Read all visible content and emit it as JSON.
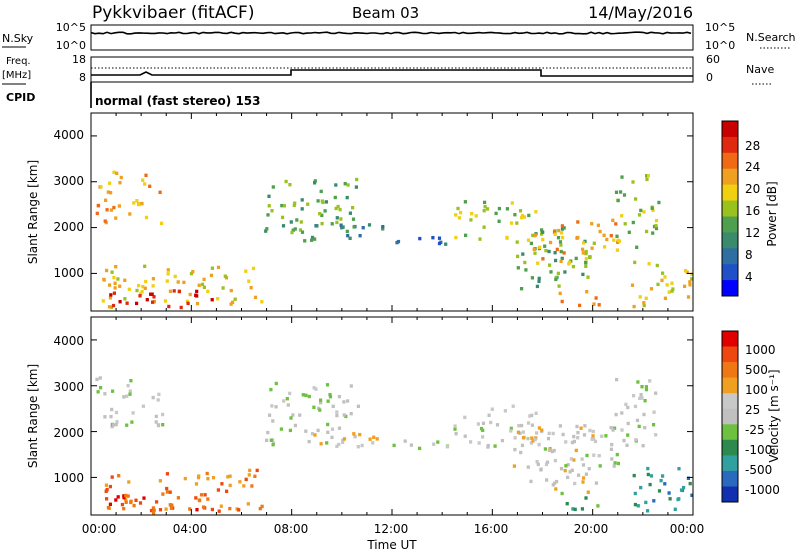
{
  "header": {
    "title": "Pykkvibaer (fitACF)",
    "beam": "Beam 03",
    "date": "14/May/2016"
  },
  "top_panels": {
    "nsky_label": "N.Sky",
    "nsky_ticks": [
      "10^5",
      "10^0"
    ],
    "nsearch_label": "N.Search",
    "nsearch_ticks": [
      "10^5",
      "10^0"
    ],
    "freq_label": "Freq.",
    "freq_unit": "[MHz]",
    "freq_ticks": [
      "18",
      "8"
    ],
    "nave_label": "Nave",
    "nave_ticks": [
      "60",
      "0"
    ],
    "cpid_label": "CPID",
    "cpid_text": "normal (fast stereo) 153"
  },
  "chart_data": [
    {
      "type": "heatmap",
      "name": "power",
      "ylabel": "Slant Range [km]",
      "yticks": [
        "4000",
        "3000",
        "2000",
        "1000"
      ],
      "ylim": [
        180,
        4500
      ],
      "colorbar_label": "Power [dB]",
      "colorbar_ticks": [
        "28",
        "24",
        "20",
        "16",
        "12",
        "8",
        "4"
      ],
      "colors": [
        "#0000ff",
        "#2050c8",
        "#2e6ea0",
        "#3a8a6e",
        "#4ea04e",
        "#9ac21e",
        "#f0d010",
        "#f0a020",
        "#ee6a14",
        "#e02a10",
        "#c80000"
      ],
      "regions": [
        {
          "t": [
            0.1,
            2.8
          ],
          "r": [
            2100,
            3250
          ],
          "level": 7
        },
        {
          "t": [
            0.3,
            6.8
          ],
          "r": [
            300,
            1200
          ],
          "level": 6
        },
        {
          "t": [
            0.6,
            4.8
          ],
          "r": [
            250,
            700
          ],
          "level": 10
        },
        {
          "t": [
            6.9,
            10.6
          ],
          "r": [
            1700,
            3100
          ],
          "level": 4
        },
        {
          "t": [
            8.7,
            11.6
          ],
          "r": [
            1650,
            2100
          ],
          "level": 3
        },
        {
          "t": [
            11.6,
            14.4
          ],
          "r": [
            1600,
            1850
          ],
          "level": 2
        },
        {
          "t": [
            14.4,
            17.9
          ],
          "r": [
            1700,
            2600
          ],
          "level": 5
        },
        {
          "t": [
            16.8,
            20.1
          ],
          "r": [
            700,
            2200
          ],
          "level": 4
        },
        {
          "t": [
            17.6,
            21.0
          ],
          "r": [
            1200,
            2200
          ],
          "level": 7
        },
        {
          "t": [
            18.6,
            20.2
          ],
          "r": [
            300,
            700
          ],
          "level": 8
        },
        {
          "t": [
            20.8,
            22.6
          ],
          "r": [
            1600,
            3200
          ],
          "level": 5
        },
        {
          "t": [
            21.5,
            24.0
          ],
          "r": [
            300,
            1300
          ],
          "level": 6
        }
      ]
    },
    {
      "type": "heatmap",
      "name": "velocity",
      "xlabel": "Time UT",
      "xticks": [
        "00:00",
        "04:00",
        "08:00",
        "12:00",
        "16:00",
        "20:00",
        "00:00"
      ],
      "xlim": [
        0,
        24
      ],
      "ylabel": "Slant Range [km]",
      "yticks": [
        "4000",
        "3000",
        "2000",
        "1000"
      ],
      "ylim": [
        180,
        4500
      ],
      "colorbar_label": "Velocity [m s⁻¹]",
      "colorbar_ticks": [
        "1000",
        "500",
        "100",
        "25",
        "-25",
        "-100",
        "-500",
        "-1000"
      ],
      "colors": [
        "#1030b0",
        "#2a6abe",
        "#30a0a0",
        "#2c8a4e",
        "#6ec040",
        "#c0c0c0",
        "#c8c8c8",
        "#f0a020",
        "#f07814",
        "#ee4810",
        "#e00000"
      ],
      "regions": [
        {
          "t": [
            0.1,
            2.8
          ],
          "r": [
            2100,
            3250
          ],
          "level": 5
        },
        {
          "t": [
            0.3,
            6.8
          ],
          "r": [
            300,
            1200
          ],
          "level": 8
        },
        {
          "t": [
            0.6,
            4.8
          ],
          "r": [
            250,
            700
          ],
          "level": 9
        },
        {
          "t": [
            6.9,
            10.6
          ],
          "r": [
            1700,
            3100
          ],
          "level": 5
        },
        {
          "t": [
            8.7,
            11.6
          ],
          "r": [
            1650,
            2100
          ],
          "level": 6
        },
        {
          "t": [
            11.6,
            14.4
          ],
          "r": [
            1600,
            1850
          ],
          "level": 5
        },
        {
          "t": [
            14.4,
            17.9
          ],
          "r": [
            1700,
            2600
          ],
          "level": 5
        },
        {
          "t": [
            16.8,
            20.1
          ],
          "r": [
            700,
            2200
          ],
          "level": 6
        },
        {
          "t": [
            17.6,
            21.0
          ],
          "r": [
            1200,
            2200
          ],
          "level": 5
        },
        {
          "t": [
            18.6,
            20.2
          ],
          "r": [
            300,
            700
          ],
          "level": 3
        },
        {
          "t": [
            20.8,
            22.6
          ],
          "r": [
            1600,
            3200
          ],
          "level": 5
        },
        {
          "t": [
            21.5,
            24.0
          ],
          "r": [
            300,
            1300
          ],
          "level": 2
        }
      ]
    }
  ]
}
